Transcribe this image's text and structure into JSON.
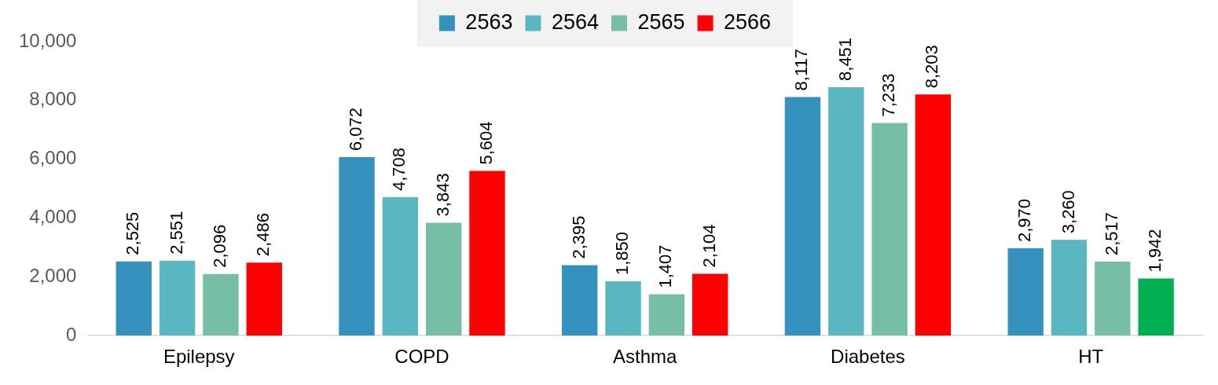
{
  "chart_data": {
    "type": "bar",
    "categories": [
      "Epilepsy",
      "COPD",
      "Asthma",
      "Diabetes",
      "HT"
    ],
    "series": [
      {
        "name": "2563",
        "color": "#3591bd",
        "values": [
          2525,
          6072,
          2395,
          8117,
          2970
        ],
        "value_labels": [
          "2,525",
          "6,072",
          "2,395",
          "8,117",
          "2,970"
        ]
      },
      {
        "name": "2564",
        "color": "#5ab6c1",
        "values": [
          2551,
          4708,
          1850,
          8451,
          3260
        ],
        "value_labels": [
          "2,551",
          "4,708",
          "1,850",
          "8,451",
          "3,260"
        ]
      },
      {
        "name": "2565",
        "color": "#76bea6",
        "values": [
          2096,
          3843,
          1407,
          7233,
          2517
        ],
        "value_labels": [
          "2,096",
          "3,843",
          "1,407",
          "7,233",
          "2,517"
        ]
      },
      {
        "name": "2566",
        "color": "#ff0000",
        "colors": [
          "#ff0000",
          "#ff0000",
          "#ff0000",
          "#ff0000",
          "#00b050"
        ],
        "values": [
          2486,
          5604,
          2104,
          8203,
          1942
        ],
        "value_labels": [
          "2,486",
          "5,604",
          "2,104",
          "8,203",
          "1,942"
        ]
      }
    ],
    "ylim": [
      0,
      10000
    ],
    "yticks": [
      {
        "value": 0,
        "label": "0"
      },
      {
        "value": 2000,
        "label": "2,000"
      },
      {
        "value": 4000,
        "label": "4,000"
      },
      {
        "value": 6000,
        "label": "6,000"
      },
      {
        "value": 8000,
        "label": "8,000"
      },
      {
        "value": 10000,
        "label": "10,000"
      }
    ],
    "grid": false,
    "legend": "top"
  }
}
